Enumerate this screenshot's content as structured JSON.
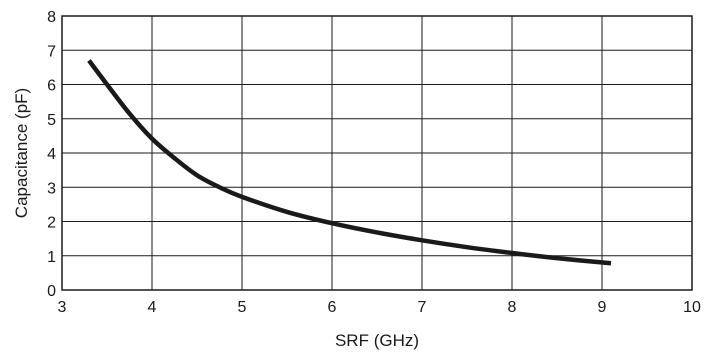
{
  "chart_data": {
    "type": "line",
    "title": "",
    "xlabel": "SRF (GHz)",
    "ylabel": "Capacitance (pF)",
    "xlim": [
      3,
      10
    ],
    "ylim": [
      0,
      8
    ],
    "x_ticks": [
      "3",
      "4",
      "5",
      "6",
      "7",
      "8",
      "9",
      "10"
    ],
    "y_ticks": [
      "0",
      "1",
      "2",
      "3",
      "4",
      "5",
      "6",
      "7",
      "8"
    ],
    "grid": true,
    "legend": "none",
    "series": [
      {
        "color": "#1a1a1a",
        "x": [
          3.3,
          3.5,
          3.75,
          4.0,
          4.25,
          4.5,
          4.75,
          5.0,
          5.5,
          6.0,
          6.5,
          7.0,
          7.5,
          8.0,
          8.5,
          9.1
        ],
        "y": [
          6.7,
          6.0,
          5.15,
          4.42,
          3.85,
          3.35,
          3.0,
          2.72,
          2.28,
          1.95,
          1.68,
          1.45,
          1.25,
          1.08,
          0.93,
          0.78
        ]
      }
    ]
  }
}
